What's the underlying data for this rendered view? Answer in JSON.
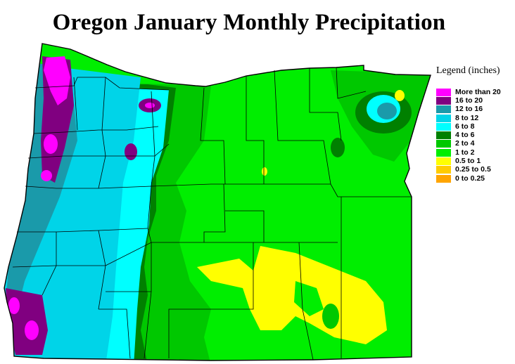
{
  "title": "Oregon January Monthly Precipitation",
  "legend": {
    "title": "Legend (inches)",
    "items": [
      {
        "label": "More than 20",
        "color": "#ff00ff"
      },
      {
        "label": "16 to 20",
        "color": "#800080"
      },
      {
        "label": "12 to 16",
        "color": "#1a9aaa"
      },
      {
        "label": "8 to 12",
        "color": "#00d4e8"
      },
      {
        "label": "6 to 8",
        "color": "#00ffff"
      },
      {
        "label": "4 to 6",
        "color": "#008000"
      },
      {
        "label": "2 to 4",
        "color": "#00c800"
      },
      {
        "label": "1 to 2",
        "color": "#00ee00"
      },
      {
        "label": "0.5 to 1",
        "color": "#ffff00"
      },
      {
        "label": "0.25 to 0.5",
        "color": "#ffcc00"
      },
      {
        "label": "0 to 0.25",
        "color": "#ffa500"
      }
    ]
  }
}
